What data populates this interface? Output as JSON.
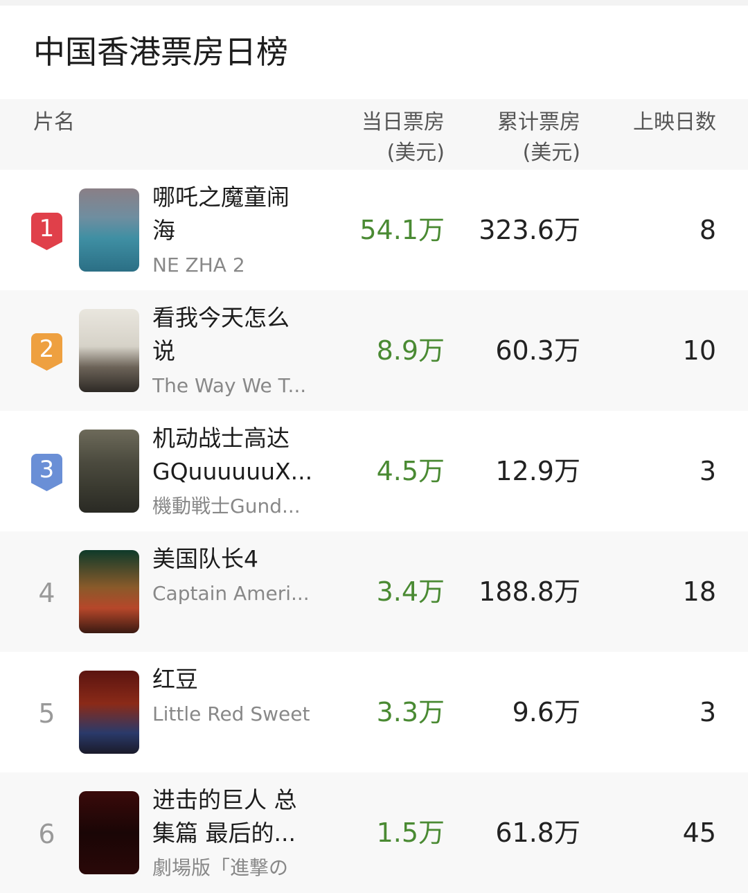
{
  "title": "中国香港票房日榜",
  "header": {
    "name": "片名",
    "daily_1": "当日票房",
    "daily_2": "(美元)",
    "cum_1": "累计票房",
    "cum_2": "(美元)",
    "days": "上映日数"
  },
  "colors": {
    "rank1": "#e0404a",
    "rank2": "#eea040",
    "rank3": "#6a8fd6",
    "daily_text": "#4a8a33"
  },
  "rows": [
    {
      "rank": "1",
      "cn": "哪吒之魔童闹海",
      "en": "NE ZHA 2",
      "daily": "54.1万",
      "cum": "323.6万",
      "days": "8"
    },
    {
      "rank": "2",
      "cn": "看我今天怎么说",
      "en": "The Way We T...",
      "daily": "8.9万",
      "cum": "60.3万",
      "days": "10"
    },
    {
      "rank": "3",
      "cn": "机动战士高达GQuuuuuuX...",
      "en": "機動戦士Gund...",
      "daily": "4.5万",
      "cum": "12.9万",
      "days": "3"
    },
    {
      "rank": "4",
      "cn": "美国队长4",
      "en": "Captain Ameri...",
      "daily": "3.4万",
      "cum": "188.8万",
      "days": "18"
    },
    {
      "rank": "5",
      "cn": "红豆",
      "en": "Little Red Sweet",
      "daily": "3.3万",
      "cum": "9.6万",
      "days": "3"
    },
    {
      "rank": "6",
      "cn": "进击的巨人 总集篇 最后的...",
      "en": "劇場版「進撃の",
      "daily": "1.5万",
      "cum": "61.8万",
      "days": "45"
    }
  ]
}
